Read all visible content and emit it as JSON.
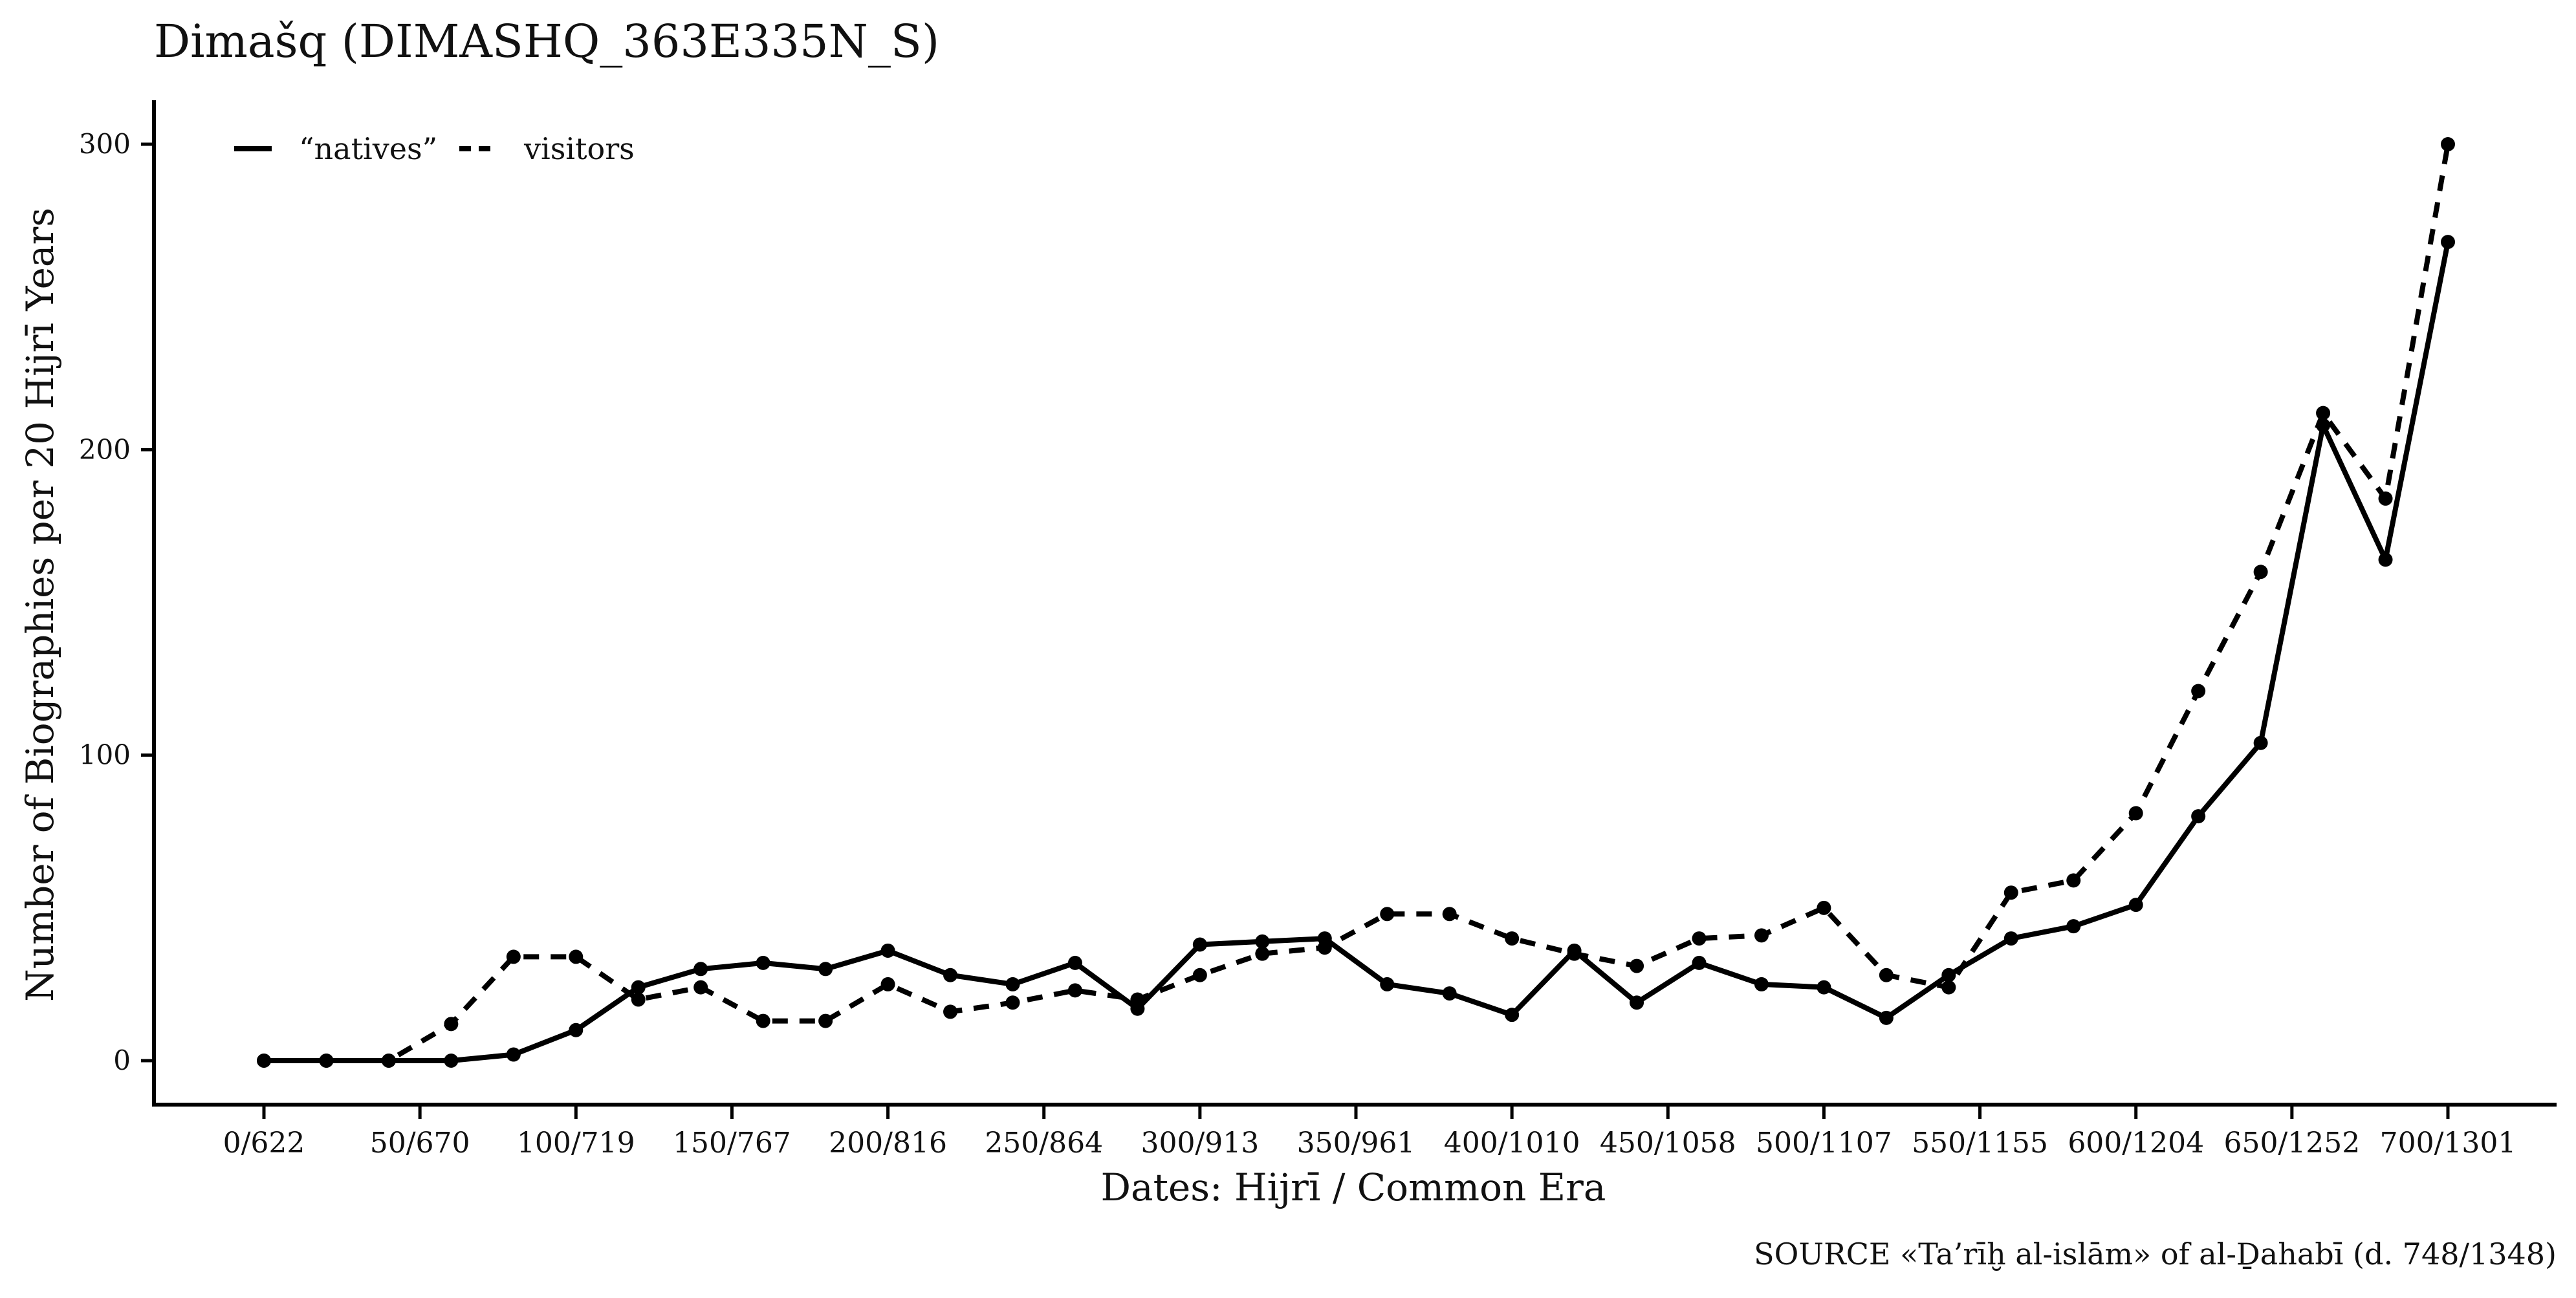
{
  "title": "Dimašq (DIMASHQ_363E335N_S)",
  "source_caption": "SOURCE «Ta’rīḫ al-islām» of al-Ḏahabī (d. 748/1348)",
  "chart_data": {
    "type": "line",
    "title": "Dimašq (DIMASHQ_363E335N_S)",
    "xlabel": "Dates: Hijrī / Common Era",
    "ylabel": "Number of Biographies per 20 Hijrī Years",
    "xlim": [
      0,
      700
    ],
    "ylim": [
      0,
      300
    ],
    "x_ticks": [
      0,
      50,
      100,
      150,
      200,
      250,
      300,
      350,
      400,
      450,
      500,
      550,
      600,
      650,
      700
    ],
    "x_tick_labels": [
      "0/622",
      "50/670",
      "100/719",
      "150/767",
      "200/816",
      "250/864",
      "300/913",
      "350/961",
      "400/1010",
      "450/1058",
      "500/1107",
      "550/1155",
      "600/1204",
      "650/1252",
      "700/1301"
    ],
    "y_ticks": [
      0,
      100,
      200,
      300
    ],
    "y_tick_labels": [
      "0",
      "100",
      "200",
      "300"
    ],
    "grid": false,
    "legend_position": "top-left",
    "x": [
      0,
      20,
      40,
      60,
      80,
      100,
      120,
      140,
      160,
      180,
      200,
      220,
      240,
      260,
      280,
      300,
      320,
      340,
      360,
      380,
      400,
      420,
      440,
      460,
      480,
      500,
      520,
      540,
      560,
      580,
      600,
      620,
      640,
      660,
      680,
      700
    ],
    "series": [
      {
        "name": "“natives”",
        "line_style": "solid",
        "color": "#000000",
        "values": [
          0,
          0,
          0,
          0,
          2,
          10,
          24,
          30,
          32,
          30,
          36,
          28,
          25,
          32,
          17,
          38,
          39,
          40,
          25,
          22,
          15,
          36,
          19,
          32,
          25,
          24,
          14,
          28,
          40,
          44,
          51,
          80,
          104,
          208,
          164,
          268
        ]
      },
      {
        "name": "visitors",
        "line_style": "dashed",
        "color": "#000000",
        "values": [
          0,
          0,
          0,
          12,
          34,
          34,
          20,
          24,
          13,
          13,
          25,
          16,
          19,
          23,
          20,
          28,
          35,
          37,
          48,
          48,
          40,
          35,
          31,
          40,
          41,
          50,
          28,
          24,
          55,
          59,
          81,
          121,
          160,
          212,
          184,
          300
        ]
      }
    ]
  }
}
